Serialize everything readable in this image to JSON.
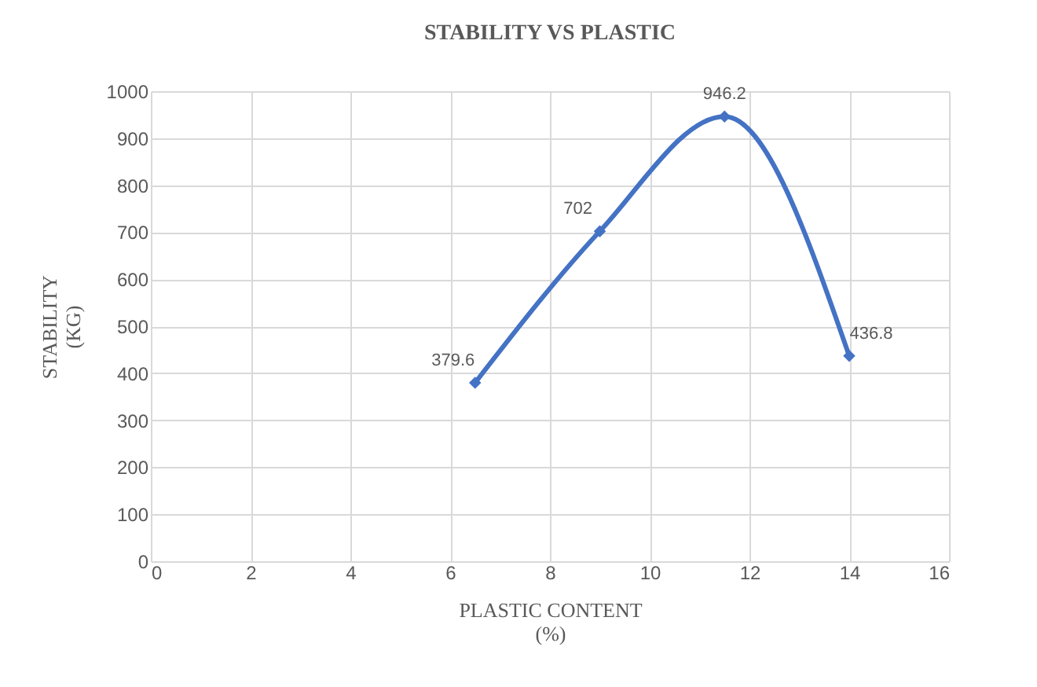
{
  "chart_data": {
    "type": "line",
    "title": "STABILITY VS PLASTIC",
    "xlabel": "PLASTIC CONTENT\n(%)",
    "ylabel": "STABILITY\n(KG)",
    "x": [
      6.5,
      9,
      11.5,
      14
    ],
    "series": [
      {
        "color": "#4472c4",
        "values": [
          379.6,
          702,
          946.2,
          436.8
        ]
      }
    ],
    "xlim": [
      0,
      16
    ],
    "xticks": [
      0,
      2,
      4,
      6,
      8,
      10,
      12,
      14,
      16
    ],
    "ylim": [
      0,
      1000
    ],
    "yticks": [
      0,
      100,
      200,
      300,
      400,
      500,
      600,
      700,
      800,
      900,
      1000
    ],
    "grid": true,
    "marker": "diamond",
    "line_style": "solid",
    "data_labels": true
  }
}
